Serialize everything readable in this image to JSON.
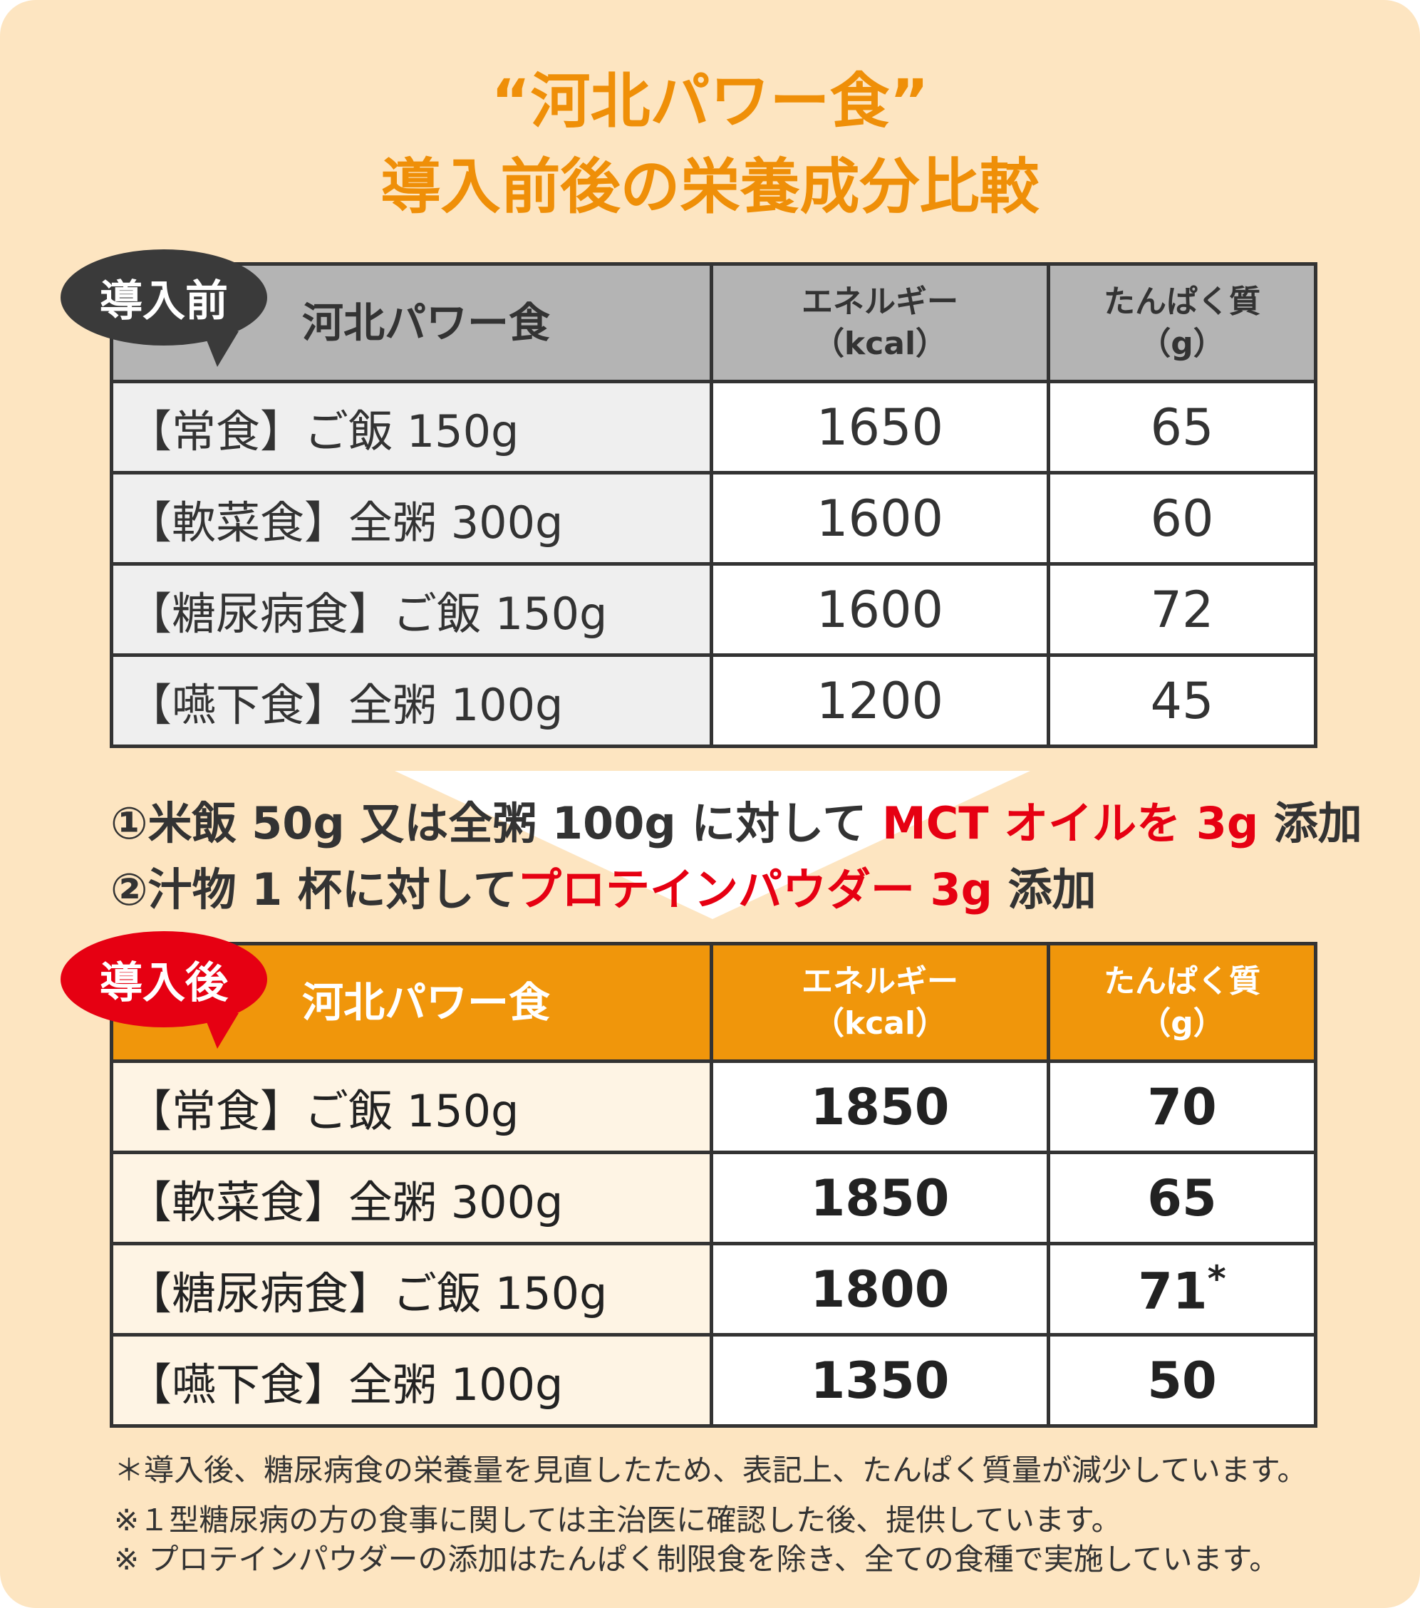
{
  "title": {
    "line1": "“河北パワー食”",
    "line2": "導入前後の栄養成分比較"
  },
  "before": {
    "badge": "導入前",
    "header": {
      "name": "河北パワー食",
      "energy": "エネルギー",
      "energy_unit": "（kcal）",
      "protein": "たんぱく質",
      "protein_unit": "（g）"
    },
    "rows": [
      {
        "label": "【常食】ご飯 150g",
        "kcal": 1650,
        "protein": 65
      },
      {
        "label": "【軟菜食】全粥 300g",
        "kcal": 1600,
        "protein": 60
      },
      {
        "label": "【糖尿病食】ご飯 150g",
        "kcal": 1600,
        "protein": 72
      },
      {
        "label": "【嚥下食】全粥 100g",
        "kcal": 1200,
        "protein": 45
      }
    ]
  },
  "changes": [
    {
      "text": "①米飯 50g 又は全粥 100g に対して ",
      "highlight": "MCT オイルを 3g",
      "suffix": " 添加"
    },
    {
      "text": "②汁物 1 杯に対して",
      "highlight": "プロテインパウダー 3g",
      "suffix": " 添加"
    }
  ],
  "after": {
    "badge": "導入後",
    "header": {
      "name": "河北パワー食",
      "energy": "エネルギー",
      "energy_unit": "（kcal）",
      "protein": "たんぱく質",
      "protein_unit": "（g）"
    },
    "rows": [
      {
        "label": "【常食】ご飯 150g",
        "kcal": 1850,
        "protein": 70
      },
      {
        "label": "【軟菜食】全粥 300g",
        "kcal": 1850,
        "protein": 65
      },
      {
        "label": "【糖尿病食】ご飯 150g",
        "kcal": 1800,
        "protein": 71,
        "mark": "*"
      },
      {
        "label": "【嚥下食】全粥 100g",
        "kcal": 1350,
        "protein": 50
      }
    ]
  },
  "footnotes": [
    "＊導入後、糖尿病食の栄養量を見直したため、表記上、たんぱく質量が減少しています。",
    "※１型糖尿病の方の食事に関しては主治医に確認した後、提供しています。",
    "※ プロテインパウダーの添加はたんぱく制限食を除き、全ての食種で実施しています。"
  ]
}
